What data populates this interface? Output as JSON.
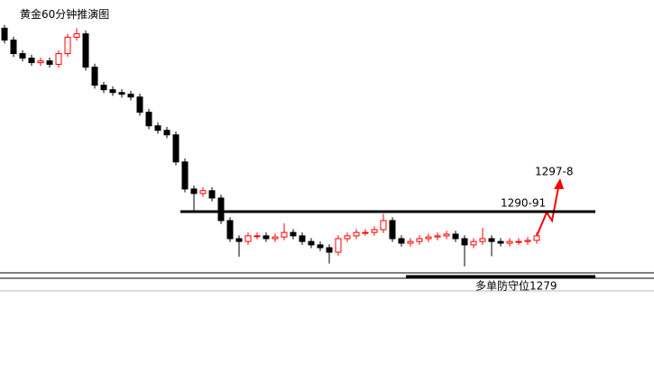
{
  "chart_data": {
    "type": "candlestick",
    "title": "黄金60分钟推演图",
    "ylim": [
      1279,
      1328
    ],
    "up_color": "#ff0000",
    "down_color": "#000000",
    "open": [
      1323.0,
      1320.9,
      1318.5,
      1317.7,
      1316.9,
      1317.2,
      1316.6,
      1318.5,
      1321.4,
      1322.0,
      1316.1,
      1312.9,
      1312.1,
      1311.6,
      1311.3,
      1310.8,
      1308.1,
      1305.7,
      1304.9,
      1304.1,
      1299.3,
      1294.5,
      1293.7,
      1294.2,
      1292.9,
      1288.9,
      1285.7,
      1285.2,
      1286.2,
      1286.2,
      1285.7,
      1286.0,
      1286.8,
      1286.2,
      1285.2,
      1284.6,
      1284.1,
      1283.3,
      1285.7,
      1286.2,
      1286.8,
      1286.8,
      1287.3,
      1288.9,
      1285.7,
      1284.9,
      1285.2,
      1285.7,
      1286.0,
      1286.2,
      1286.5,
      1285.7,
      1284.6,
      1285.2,
      1285.7,
      1285.2,
      1284.9,
      1285.2,
      1285.2,
      1285.4
    ],
    "high": [
      1323.6,
      1321.5,
      1319.1,
      1318.3,
      1317.8,
      1317.8,
      1319.1,
      1322.0,
      1323.0,
      1322.6,
      1316.7,
      1313.5,
      1312.7,
      1312.2,
      1311.9,
      1311.4,
      1308.7,
      1306.3,
      1305.5,
      1304.7,
      1299.9,
      1295.1,
      1294.8,
      1294.8,
      1293.5,
      1289.5,
      1286.3,
      1286.8,
      1286.8,
      1286.8,
      1286.6,
      1288.4,
      1287.4,
      1286.8,
      1285.8,
      1285.2,
      1284.7,
      1286.3,
      1286.8,
      1287.4,
      1287.4,
      1287.9,
      1290.1,
      1289.5,
      1286.3,
      1285.8,
      1286.3,
      1286.6,
      1286.8,
      1287.1,
      1287.1,
      1286.3,
      1285.8,
      1287.6,
      1286.3,
      1285.8,
      1285.8,
      1285.8,
      1286.0,
      1286.8
    ],
    "low": [
      1320.3,
      1317.9,
      1317.1,
      1316.3,
      1316.3,
      1316.0,
      1316.0,
      1317.9,
      1320.8,
      1315.5,
      1312.3,
      1311.5,
      1311.0,
      1310.7,
      1310.2,
      1307.5,
      1305.1,
      1304.3,
      1303.5,
      1298.7,
      1293.9,
      1290.5,
      1293.1,
      1292.3,
      1288.3,
      1285.1,
      1282.5,
      1284.6,
      1285.6,
      1285.1,
      1285.1,
      1285.4,
      1285.6,
      1284.6,
      1284.0,
      1283.5,
      1281.3,
      1282.7,
      1285.1,
      1285.6,
      1286.2,
      1286.2,
      1286.7,
      1285.1,
      1284.3,
      1284.3,
      1284.6,
      1285.1,
      1285.4,
      1285.6,
      1285.1,
      1280.8,
      1284.0,
      1284.6,
      1282.6,
      1284.3,
      1284.3,
      1284.6,
      1284.6,
      1284.8
    ],
    "close": [
      1320.9,
      1318.5,
      1317.7,
      1316.9,
      1317.2,
      1316.6,
      1318.5,
      1321.4,
      1322.0,
      1316.1,
      1312.9,
      1312.1,
      1311.6,
      1311.3,
      1310.8,
      1308.1,
      1305.7,
      1304.9,
      1304.1,
      1299.3,
      1294.5,
      1293.7,
      1294.2,
      1292.9,
      1288.9,
      1285.7,
      1285.2,
      1286.2,
      1286.2,
      1285.7,
      1286.0,
      1286.8,
      1286.2,
      1285.2,
      1284.6,
      1284.1,
      1283.3,
      1285.7,
      1286.2,
      1286.8,
      1286.8,
      1287.3,
      1288.9,
      1285.7,
      1284.9,
      1285.2,
      1285.7,
      1286.0,
      1286.2,
      1286.5,
      1285.7,
      1284.6,
      1285.2,
      1285.7,
      1285.2,
      1284.9,
      1285.2,
      1285.2,
      1285.4,
      1286.2
    ],
    "levels": [
      {
        "label": "1290-91",
        "value": 1290.5
      },
      {
        "label": "多单防守位1279",
        "value": 1279
      }
    ],
    "target": {
      "label": "1297-8",
      "value": 1297.5
    }
  }
}
